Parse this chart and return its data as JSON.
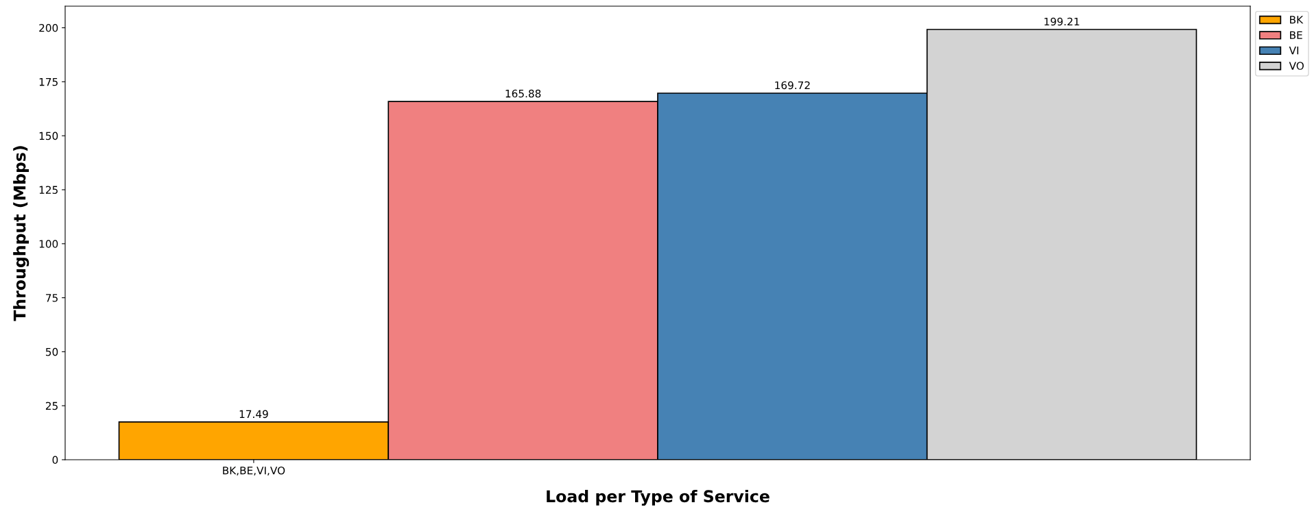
{
  "chart_data": {
    "type": "bar",
    "xlabel": "Load per Type of Service",
    "ylabel": "Throughput (Mbps)",
    "categories": [
      "BK,BE,VI,VO"
    ],
    "series": [
      {
        "name": "BK",
        "color": "#ffa500",
        "values": [
          17.49
        ]
      },
      {
        "name": "BE",
        "color": "#f08080",
        "values": [
          165.88
        ]
      },
      {
        "name": "VI",
        "color": "#4682b4",
        "values": [
          169.72
        ]
      },
      {
        "name": "VO",
        "color": "#d3d3d3",
        "values": [
          199.21
        ]
      }
    ],
    "ylim": [
      0,
      210
    ],
    "yticks": [
      0,
      25,
      50,
      75,
      100,
      125,
      150,
      175,
      200
    ],
    "data_labels": true,
    "grid": false,
    "legend": "top right"
  }
}
